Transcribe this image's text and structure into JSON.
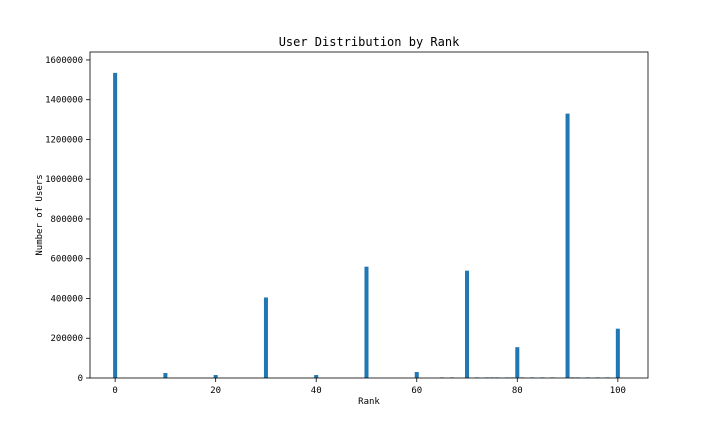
{
  "chart_data": {
    "type": "bar",
    "title": "User Distribution by Rank",
    "xlabel": "Rank",
    "ylabel": "Number of Users",
    "xlim": [
      -5,
      106
    ],
    "ylim": [
      0,
      1640000
    ],
    "xticks": [
      0,
      20,
      40,
      60,
      80,
      100
    ],
    "yticks": [
      0,
      200000,
      400000,
      600000,
      800000,
      1000000,
      1200000,
      1400000,
      1600000
    ],
    "grid": false,
    "color": "#1f77b4",
    "bars": [
      {
        "x": 0,
        "y": 1535000
      },
      {
        "x": 10,
        "y": 25000
      },
      {
        "x": 20,
        "y": 15000
      },
      {
        "x": 30,
        "y": 405000
      },
      {
        "x": 40,
        "y": 15000
      },
      {
        "x": 50,
        "y": 560000
      },
      {
        "x": 60,
        "y": 30000
      },
      {
        "x": 65,
        "y": 3000
      },
      {
        "x": 67,
        "y": 3000
      },
      {
        "x": 70,
        "y": 540000
      },
      {
        "x": 72,
        "y": 3000
      },
      {
        "x": 74,
        "y": 3000
      },
      {
        "x": 75,
        "y": 3000
      },
      {
        "x": 76,
        "y": 3000
      },
      {
        "x": 78,
        "y": 3000
      },
      {
        "x": 79,
        "y": 3000
      },
      {
        "x": 80,
        "y": 155000
      },
      {
        "x": 81,
        "y": 3000
      },
      {
        "x": 83,
        "y": 3000
      },
      {
        "x": 85,
        "y": 3000
      },
      {
        "x": 87,
        "y": 3000
      },
      {
        "x": 90,
        "y": 1330000
      },
      {
        "x": 91,
        "y": 3000
      },
      {
        "x": 92,
        "y": 3000
      },
      {
        "x": 94,
        "y": 3000
      },
      {
        "x": 96,
        "y": 3000
      },
      {
        "x": 98,
        "y": 3000
      },
      {
        "x": 100,
        "y": 248000
      }
    ]
  }
}
